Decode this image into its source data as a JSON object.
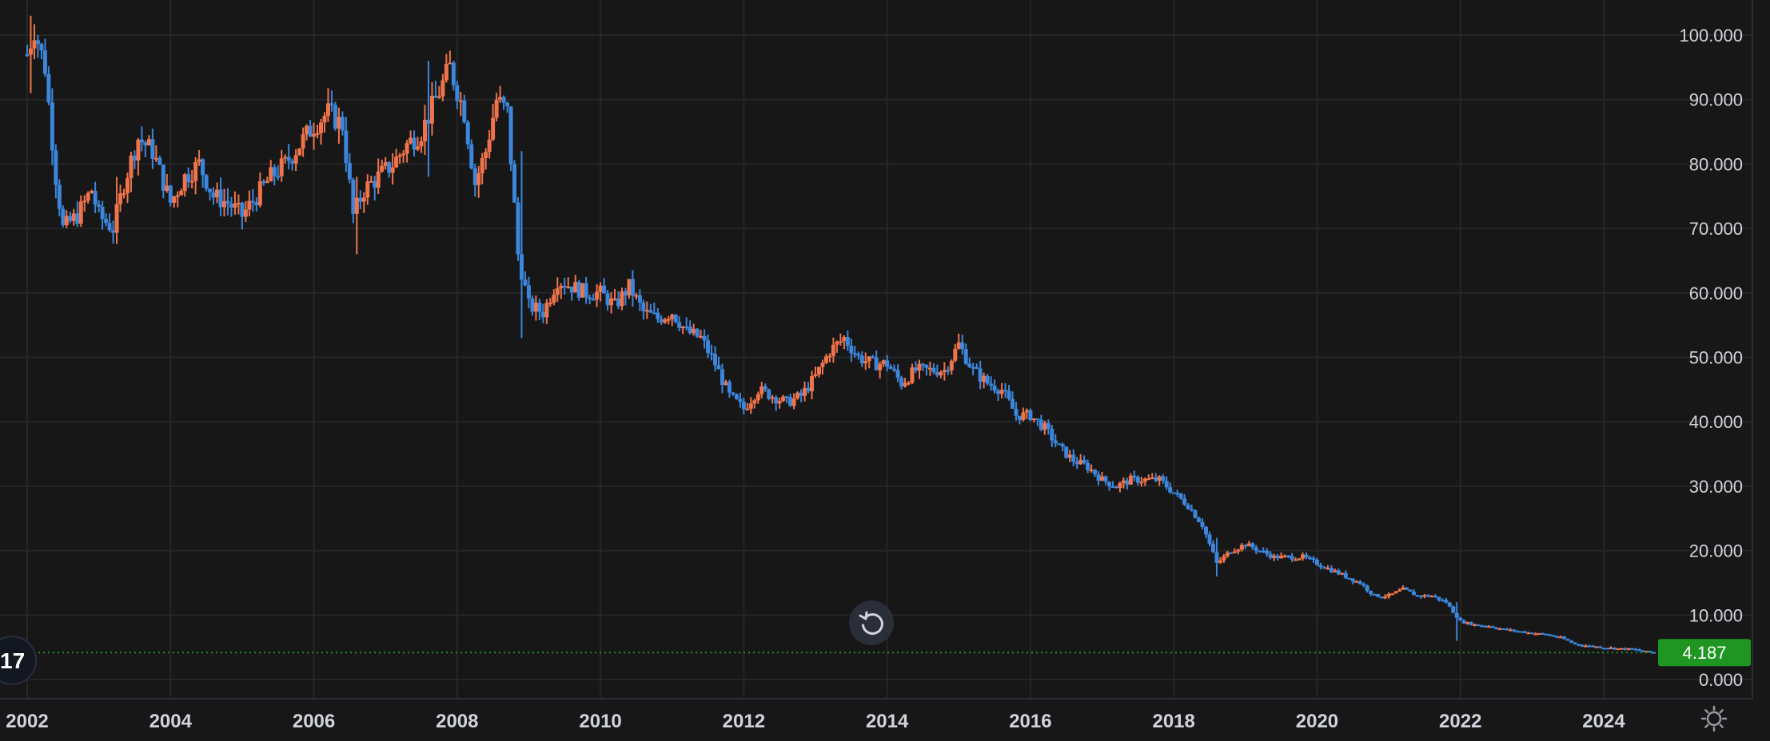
{
  "chart_data": {
    "type": "candlestick",
    "title": "",
    "xlabel": "",
    "ylabel": "",
    "x_range": [
      2002.0,
      2024.7
    ],
    "ylim": [
      -3.0,
      104.0
    ],
    "y_ticks": [
      {
        "value": 0,
        "label": "0.000"
      },
      {
        "value": 10,
        "label": "10.000"
      },
      {
        "value": 20,
        "label": "20.000"
      },
      {
        "value": 30,
        "label": "30.000"
      },
      {
        "value": 40,
        "label": "40.000"
      },
      {
        "value": 50,
        "label": "50.000"
      },
      {
        "value": 60,
        "label": "60.000"
      },
      {
        "value": 70,
        "label": "70.000"
      },
      {
        "value": 80,
        "label": "80.000"
      },
      {
        "value": 90,
        "label": "90.000"
      },
      {
        "value": 100,
        "label": "100.000"
      }
    ],
    "x_ticks": [
      {
        "value": 2002,
        "label": "2002"
      },
      {
        "value": 2004,
        "label": "2004"
      },
      {
        "value": 2006,
        "label": "2006"
      },
      {
        "value": 2008,
        "label": "2008"
      },
      {
        "value": 2010,
        "label": "2010"
      },
      {
        "value": 2012,
        "label": "2012"
      },
      {
        "value": 2014,
        "label": "2014"
      },
      {
        "value": 2016,
        "label": "2016"
      },
      {
        "value": 2018,
        "label": "2018"
      },
      {
        "value": 2020,
        "label": "2020"
      },
      {
        "value": 2022,
        "label": "2022"
      },
      {
        "value": 2024,
        "label": "2024"
      }
    ],
    "grid": true,
    "up_color": "#f0744b",
    "down_color": "#3c86dc",
    "last_price": {
      "value": 4.187,
      "label": "4.187",
      "color": "#1e9621"
    },
    "price_path": [
      [
        2002.0,
        97
      ],
      [
        2002.1,
        101
      ],
      [
        2002.25,
        95
      ],
      [
        2002.4,
        78
      ],
      [
        2002.5,
        70
      ],
      [
        2002.7,
        72
      ],
      [
        2002.9,
        76
      ],
      [
        2003.0,
        72
      ],
      [
        2003.2,
        70
      ],
      [
        2003.35,
        77
      ],
      [
        2003.55,
        84
      ],
      [
        2003.75,
        82
      ],
      [
        2004.0,
        74
      ],
      [
        2004.2,
        78
      ],
      [
        2004.4,
        80
      ],
      [
        2004.6,
        75
      ],
      [
        2004.8,
        74
      ],
      [
        2005.0,
        72
      ],
      [
        2005.2,
        75
      ],
      [
        2005.4,
        78
      ],
      [
        2005.6,
        80
      ],
      [
        2005.8,
        83
      ],
      [
        2006.0,
        86
      ],
      [
        2006.2,
        88
      ],
      [
        2006.4,
        86
      ],
      [
        2006.55,
        72
      ],
      [
        2006.7,
        76
      ],
      [
        2006.9,
        78
      ],
      [
        2007.1,
        80
      ],
      [
        2007.3,
        83
      ],
      [
        2007.5,
        85
      ],
      [
        2007.7,
        90
      ],
      [
        2007.9,
        95
      ],
      [
        2008.1,
        88
      ],
      [
        2008.25,
        77
      ],
      [
        2008.4,
        82
      ],
      [
        2008.55,
        90
      ],
      [
        2008.7,
        88
      ],
      [
        2008.85,
        66
      ],
      [
        2009.0,
        58
      ],
      [
        2009.2,
        57
      ],
      [
        2009.4,
        62
      ],
      [
        2009.6,
        61
      ],
      [
        2009.8,
        60
      ],
      [
        2010.0,
        60
      ],
      [
        2010.2,
        58
      ],
      [
        2010.4,
        61
      ],
      [
        2010.6,
        57
      ],
      [
        2010.8,
        56
      ],
      [
        2011.0,
        57
      ],
      [
        2011.2,
        54
      ],
      [
        2011.4,
        53
      ],
      [
        2011.6,
        49
      ],
      [
        2011.8,
        44
      ],
      [
        2012.0,
        42
      ],
      [
        2012.2,
        45
      ],
      [
        2012.4,
        44
      ],
      [
        2012.6,
        43
      ],
      [
        2012.8,
        44
      ],
      [
        2013.0,
        47
      ],
      [
        2013.2,
        51
      ],
      [
        2013.4,
        53
      ],
      [
        2013.6,
        50
      ],
      [
        2013.8,
        49
      ],
      [
        2014.0,
        49
      ],
      [
        2014.2,
        46
      ],
      [
        2014.4,
        48
      ],
      [
        2014.6,
        48
      ],
      [
        2014.8,
        48
      ],
      [
        2015.0,
        52
      ],
      [
        2015.2,
        48
      ],
      [
        2015.4,
        46
      ],
      [
        2015.6,
        45
      ],
      [
        2015.8,
        41
      ],
      [
        2016.0,
        41
      ],
      [
        2016.2,
        39
      ],
      [
        2016.4,
        36
      ],
      [
        2016.6,
        34
      ],
      [
        2016.8,
        33
      ],
      [
        2017.0,
        31
      ],
      [
        2017.2,
        30
      ],
      [
        2017.4,
        31
      ],
      [
        2017.6,
        31
      ],
      [
        2017.8,
        31
      ],
      [
        2018.0,
        29
      ],
      [
        2018.2,
        27
      ],
      [
        2018.4,
        24
      ],
      [
        2018.6,
        18
      ],
      [
        2018.8,
        20
      ],
      [
        2019.0,
        21
      ],
      [
        2019.2,
        20
      ],
      [
        2019.4,
        19
      ],
      [
        2019.6,
        19
      ],
      [
        2019.8,
        19
      ],
      [
        2020.0,
        18
      ],
      [
        2020.2,
        17
      ],
      [
        2020.4,
        16
      ],
      [
        2020.6,
        15
      ],
      [
        2020.8,
        13
      ],
      [
        2021.0,
        13
      ],
      [
        2021.2,
        14
      ],
      [
        2021.4,
        13
      ],
      [
        2021.6,
        13
      ],
      [
        2021.8,
        12
      ],
      [
        2022.0,
        9
      ],
      [
        2022.2,
        8.5
      ],
      [
        2022.4,
        8.3
      ],
      [
        2022.6,
        7.8
      ],
      [
        2022.8,
        7.5
      ],
      [
        2023.0,
        7.2
      ],
      [
        2023.2,
        7.0
      ],
      [
        2023.4,
        6.5
      ],
      [
        2023.6,
        5.5
      ],
      [
        2023.8,
        5.2
      ],
      [
        2024.0,
        5.0
      ],
      [
        2024.2,
        4.8
      ],
      [
        2024.4,
        4.7
      ],
      [
        2024.6,
        4.3
      ],
      [
        2024.7,
        4.19
      ]
    ],
    "notable_wicks": [
      {
        "x": 2002.05,
        "high": 103,
        "low": 91
      },
      {
        "x": 2003.25,
        "high": 78,
        "low": 68
      },
      {
        "x": 2006.6,
        "high": 78,
        "low": 66
      },
      {
        "x": 2007.6,
        "high": 96,
        "low": 78
      },
      {
        "x": 2008.9,
        "high": 82,
        "low": 53
      },
      {
        "x": 2018.6,
        "high": 22,
        "low": 16
      },
      {
        "x": 2021.95,
        "high": 12,
        "low": 6
      }
    ]
  },
  "controls": {
    "reset_icon": "reset-icon",
    "settings_icon": "gear-icon",
    "logo_icon": "tradingview-logo-icon",
    "logo_text": "17"
  }
}
